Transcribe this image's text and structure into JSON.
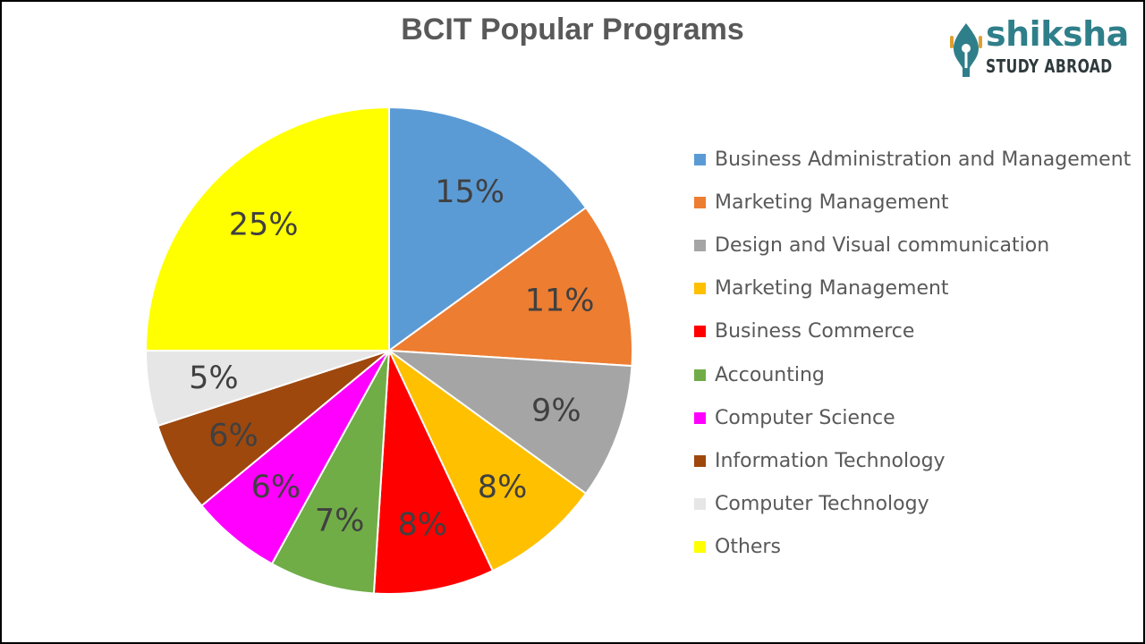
{
  "chart_data": {
    "type": "pie",
    "title": "BCIT Popular Programs",
    "unit": "%",
    "start_angle": "12 o'clock, clockwise",
    "slices": [
      {
        "label": "Business Administration and Management",
        "value": 15,
        "display": "15%",
        "color": "#5b9bd5"
      },
      {
        "label": "Marketing Management",
        "value": 11,
        "display": "11%",
        "color": "#ed7d31"
      },
      {
        "label": "Design and Visual communication",
        "value": 9,
        "display": "9%",
        "color": "#a5a5a5"
      },
      {
        "label": "Marketing Management",
        "value": 8,
        "display": "8%",
        "color": "#ffc000"
      },
      {
        "label": "Business Commerce",
        "value": 8,
        "display": "8%",
        "color": "#ff0000"
      },
      {
        "label": "Accounting",
        "value": 7,
        "display": "7%",
        "color": "#70ad47"
      },
      {
        "label": "Computer Science",
        "value": 6,
        "display": "6%",
        "color": "#ff00ff"
      },
      {
        "label": "Information Technology",
        "value": 6,
        "display": "6%",
        "color": "#9e480e"
      },
      {
        "label": "Computer Technology",
        "value": 5,
        "display": "5%",
        "color": "#e7e6e6"
      },
      {
        "label": "Others",
        "value": 25,
        "display": "25%",
        "color": "#ffff00"
      }
    ],
    "legend_position": "right"
  },
  "logo": {
    "wordmark": "shiksha",
    "tagline": "STUDY ABROAD",
    "color": "#2f7f8a"
  }
}
